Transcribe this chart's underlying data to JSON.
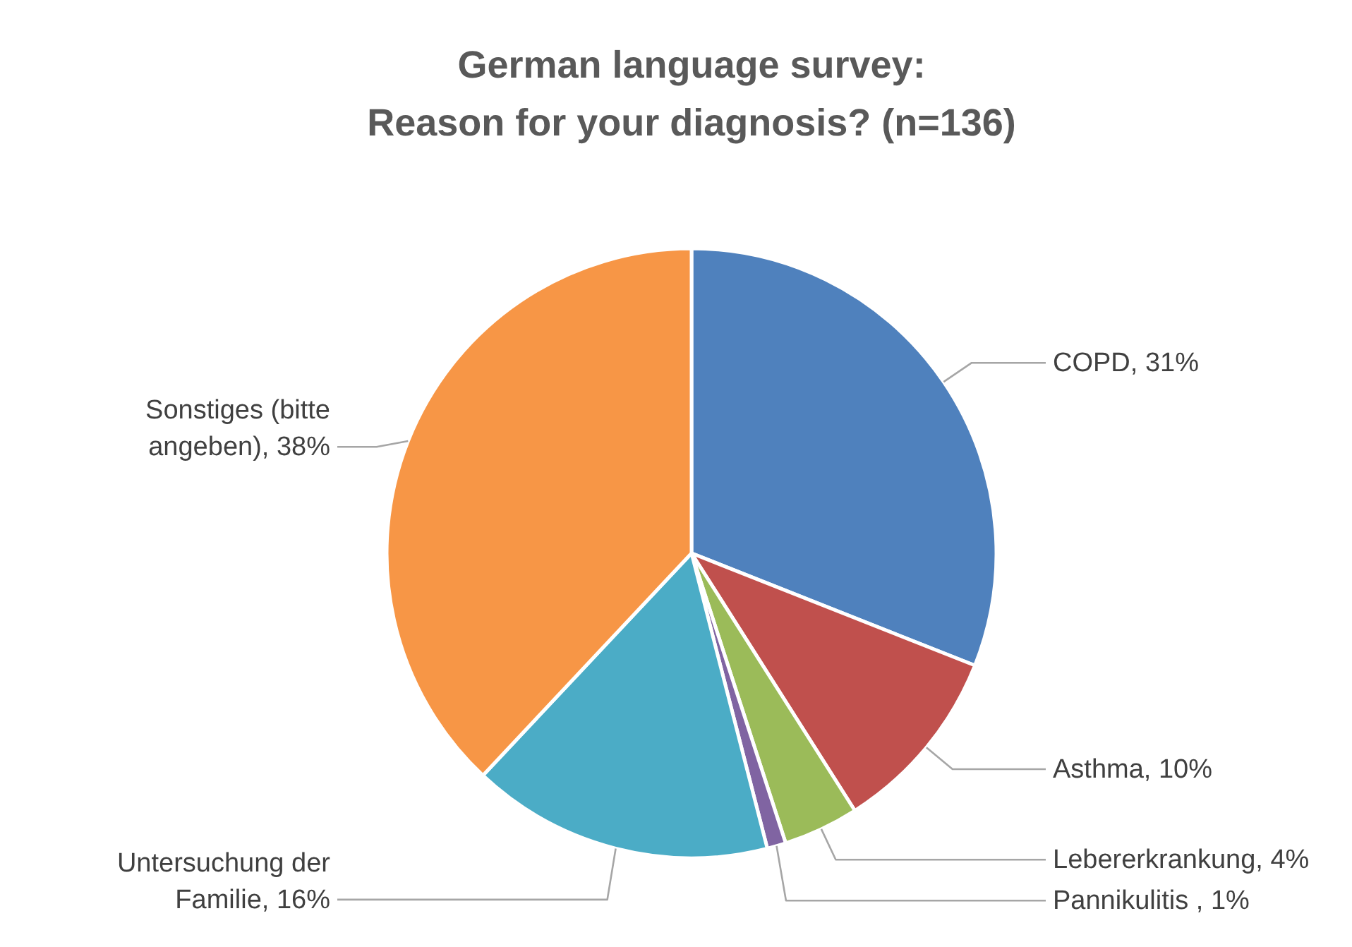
{
  "chart_data": {
    "type": "pie",
    "title": "German language survey:",
    "subtitle": "Reason for your diagnosis? (n=136)",
    "categories": [
      "COPD",
      "Asthma",
      "Lebererkrankung",
      "Pannikulitis ",
      "Untersuchung der Familie",
      "Sonstiges (bitte angeben)"
    ],
    "values": [
      31,
      10,
      4,
      1,
      16,
      38
    ],
    "colors": [
      "#4f81bd",
      "#c0504d",
      "#9bbb59",
      "#8064a2",
      "#4bacc6",
      "#f79646"
    ],
    "value_labels": [
      "31%",
      "10%",
      "4%",
      "1%",
      "16%",
      "38%"
    ]
  }
}
